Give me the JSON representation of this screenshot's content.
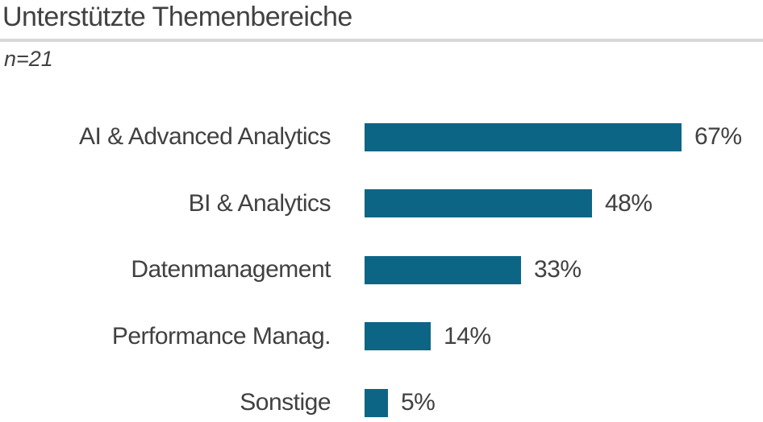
{
  "header": {
    "title": "Unterstützte Themenbereiche",
    "sample_size": "n=21"
  },
  "chart_data": {
    "type": "bar",
    "orientation": "horizontal",
    "title": "Unterstützte Themenbereiche",
    "subtitle": "n=21",
    "categories": [
      "AI & Advanced Analytics",
      "BI & Analytics",
      "Datenmanagement",
      "Performance Manag.",
      "Sonstige"
    ],
    "values": [
      67,
      48,
      33,
      14,
      5
    ],
    "value_labels": [
      "67%",
      "48%",
      "33%",
      "14%",
      "5%"
    ],
    "unit": "%",
    "xlim": [
      0,
      100
    ],
    "grid": false,
    "legend": false,
    "colors": {
      "bar": "#0D6585",
      "text": "#414141",
      "divider": "#D8D8D8",
      "background": "#FFFFFF"
    }
  }
}
